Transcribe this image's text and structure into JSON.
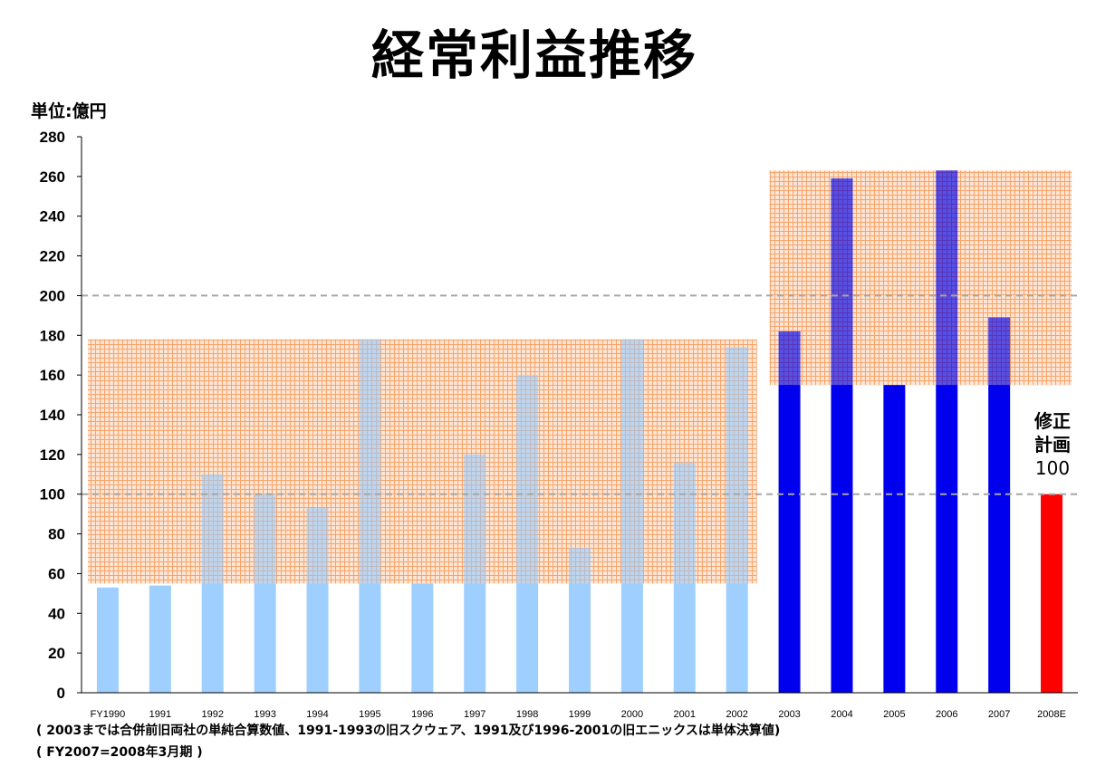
{
  "title": "経常利益推移",
  "unit": "単位:億円",
  "annotation": {
    "line1": "修正",
    "line2": "計画",
    "line3": "100"
  },
  "footnotes": [
    "( 2003までは合併前旧両社の単純合算数値、1991-1993の旧スクウェア、1991及び1996-2001の旧エニックスは単体決算値)",
    "( FY2007=2008年3月期 )"
  ],
  "colors": {
    "early": "#99ccff",
    "later": "#0000ee",
    "forecast": "#ff0000",
    "band": "#f79a5a"
  },
  "chart_data": {
    "type": "bar",
    "categories": [
      "FY1990",
      "1991",
      "1992",
      "1993",
      "1994",
      "1995",
      "1996",
      "1997",
      "1998",
      "1999",
      "2000",
      "2001",
      "2002",
      "2003",
      "2004",
      "2005",
      "2006",
      "2007",
      "2008E"
    ],
    "values": [
      53,
      54,
      110,
      100,
      93,
      178,
      55,
      120,
      160,
      73,
      178,
      116,
      174,
      182,
      259,
      155,
      263,
      189,
      100
    ],
    "ylim": [
      0,
      280
    ],
    "yticks": [
      0,
      20,
      40,
      60,
      80,
      100,
      120,
      140,
      160,
      180,
      200,
      220,
      240,
      260,
      280
    ],
    "reference_lines": [
      100,
      200
    ],
    "shaded_ranges": [
      {
        "from": "FY1990",
        "to": "2002",
        "y": [
          55,
          178
        ]
      },
      {
        "from": "2003",
        "to": "2008E",
        "y": [
          155,
          263
        ]
      }
    ],
    "grid": false,
    "legend": "none"
  }
}
